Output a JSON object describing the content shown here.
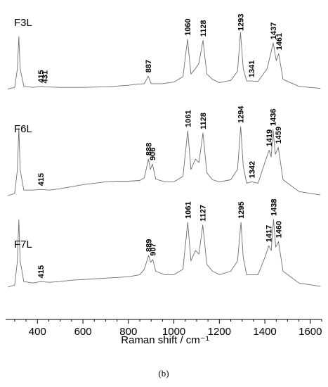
{
  "figure_label": "(b)",
  "chart_data": {
    "type": "line",
    "xlabel": "Raman shift / cm⁻¹",
    "ylabel": "",
    "xlim": [
      260,
      1650
    ],
    "x_ticks": [
      400,
      600,
      800,
      1000,
      1200,
      1400,
      1600
    ],
    "x_minor_step": 50,
    "grid": false,
    "color": "#6e6e6e",
    "series": [
      {
        "name": "F3L",
        "points": [
          [
            270,
            0.02
          ],
          [
            300,
            0.05
          ],
          [
            312,
            0.4
          ],
          [
            318,
            1.0
          ],
          [
            324,
            0.4
          ],
          [
            340,
            0.07
          ],
          [
            380,
            0.05
          ],
          [
            415,
            0.07
          ],
          [
            431,
            0.06
          ],
          [
            500,
            0.05
          ],
          [
            600,
            0.05
          ],
          [
            700,
            0.06
          ],
          [
            800,
            0.09
          ],
          [
            840,
            0.11
          ],
          [
            870,
            0.12
          ],
          [
            887,
            0.26
          ],
          [
            900,
            0.12
          ],
          [
            950,
            0.12
          ],
          [
            1000,
            0.15
          ],
          [
            1040,
            0.25
          ],
          [
            1060,
            0.95
          ],
          [
            1075,
            0.3
          ],
          [
            1095,
            0.4
          ],
          [
            1110,
            0.5
          ],
          [
            1128,
            0.93
          ],
          [
            1145,
            0.3
          ],
          [
            1170,
            0.2
          ],
          [
            1200,
            0.14
          ],
          [
            1250,
            0.18
          ],
          [
            1280,
            0.35
          ],
          [
            1293,
            1.08
          ],
          [
            1305,
            0.4
          ],
          [
            1320,
            0.17
          ],
          [
            1341,
            0.17
          ],
          [
            1370,
            0.16
          ],
          [
            1410,
            0.4
          ],
          [
            1437,
            0.88
          ],
          [
            1450,
            0.55
          ],
          [
            1461,
            0.68
          ],
          [
            1480,
            0.2
          ],
          [
            1550,
            0.07
          ],
          [
            1645,
            0.03
          ]
        ],
        "peaks": [
          415,
          431,
          887,
          1060,
          1128,
          1293,
          1341,
          1437,
          1461
        ]
      },
      {
        "name": "F6L",
        "points": [
          [
            270,
            0.02
          ],
          [
            300,
            0.05
          ],
          [
            312,
            0.4
          ],
          [
            318,
            1.0
          ],
          [
            324,
            0.4
          ],
          [
            340,
            0.1
          ],
          [
            380,
            0.1
          ],
          [
            415,
            0.11
          ],
          [
            450,
            0.1
          ],
          [
            500,
            0.12
          ],
          [
            550,
            0.15
          ],
          [
            600,
            0.18
          ],
          [
            650,
            0.2
          ],
          [
            700,
            0.22
          ],
          [
            750,
            0.23
          ],
          [
            800,
            0.23
          ],
          [
            850,
            0.24
          ],
          [
            870,
            0.28
          ],
          [
            888,
            0.55
          ],
          [
            897,
            0.4
          ],
          [
            906,
            0.48
          ],
          [
            920,
            0.26
          ],
          [
            960,
            0.22
          ],
          [
            1000,
            0.22
          ],
          [
            1040,
            0.3
          ],
          [
            1061,
            0.96
          ],
          [
            1075,
            0.4
          ],
          [
            1095,
            0.55
          ],
          [
            1110,
            0.5
          ],
          [
            1128,
            0.93
          ],
          [
            1145,
            0.35
          ],
          [
            1170,
            0.25
          ],
          [
            1200,
            0.22
          ],
          [
            1250,
            0.25
          ],
          [
            1280,
            0.4
          ],
          [
            1294,
            1.02
          ],
          [
            1305,
            0.45
          ],
          [
            1320,
            0.2
          ],
          [
            1342,
            0.22
          ],
          [
            1370,
            0.2
          ],
          [
            1400,
            0.5
          ],
          [
            1419,
            0.68
          ],
          [
            1428,
            0.58
          ],
          [
            1436,
            0.98
          ],
          [
            1446,
            0.62
          ],
          [
            1459,
            0.72
          ],
          [
            1480,
            0.25
          ],
          [
            1550,
            0.08
          ],
          [
            1645,
            0.03
          ]
        ],
        "peaks": [
          415,
          888,
          906,
          1061,
          1128,
          1294,
          1342,
          1419,
          1436,
          1459
        ]
      },
      {
        "name": "F7L",
        "points": [
          [
            270,
            0.02
          ],
          [
            300,
            0.05
          ],
          [
            312,
            0.4
          ],
          [
            318,
            1.0
          ],
          [
            324,
            0.4
          ],
          [
            340,
            0.1
          ],
          [
            380,
            0.08
          ],
          [
            415,
            0.1
          ],
          [
            450,
            0.09
          ],
          [
            500,
            0.1
          ],
          [
            550,
            0.12
          ],
          [
            600,
            0.13
          ],
          [
            700,
            0.15
          ],
          [
            800,
            0.17
          ],
          [
            850,
            0.2
          ],
          [
            870,
            0.28
          ],
          [
            889,
            0.48
          ],
          [
            898,
            0.38
          ],
          [
            907,
            0.42
          ],
          [
            920,
            0.25
          ],
          [
            960,
            0.2
          ],
          [
            1000,
            0.2
          ],
          [
            1040,
            0.28
          ],
          [
            1061,
            0.96
          ],
          [
            1075,
            0.4
          ],
          [
            1095,
            0.55
          ],
          [
            1110,
            0.5
          ],
          [
            1127,
            0.92
          ],
          [
            1145,
            0.35
          ],
          [
            1170,
            0.25
          ],
          [
            1200,
            0.2
          ],
          [
            1250,
            0.25
          ],
          [
            1280,
            0.4
          ],
          [
            1295,
            0.96
          ],
          [
            1305,
            0.45
          ],
          [
            1320,
            0.2
          ],
          [
            1342,
            0.2
          ],
          [
            1370,
            0.2
          ],
          [
            1400,
            0.45
          ],
          [
            1417,
            0.62
          ],
          [
            1428,
            0.55
          ],
          [
            1438,
            1.0
          ],
          [
            1448,
            0.6
          ],
          [
            1460,
            0.68
          ],
          [
            1480,
            0.25
          ],
          [
            1550,
            0.08
          ],
          [
            1645,
            0.03
          ]
        ],
        "peaks": [
          415,
          889,
          907,
          1061,
          1127,
          1295,
          1417,
          1438,
          1460
        ]
      }
    ]
  }
}
